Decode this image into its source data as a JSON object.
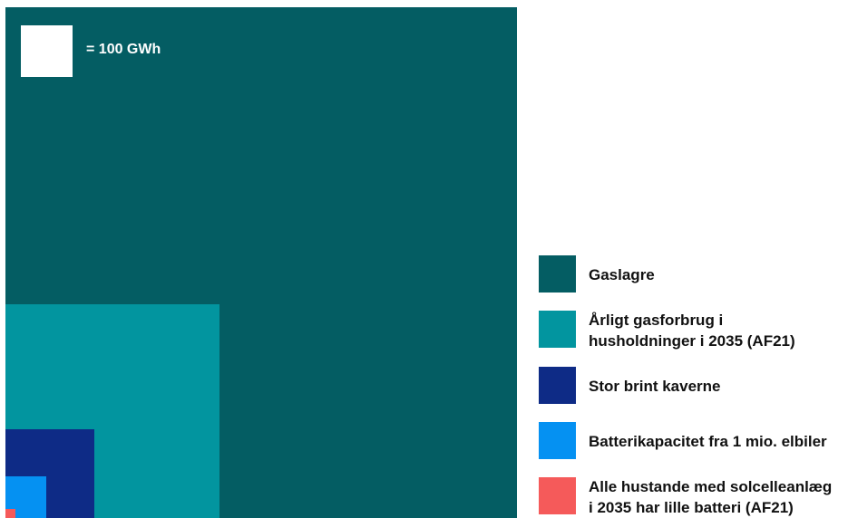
{
  "chart_data": {
    "type": "area",
    "title": "",
    "unit_note": "= 100 GWh",
    "items": [
      {
        "name": "Gaslagre",
        "lines": [
          "Gaslagre"
        ],
        "value_gwh": 9600,
        "color": "#045d63"
      },
      {
        "name": "Årligt gasforbrug i husholdninger i 2035 (AF21)",
        "lines": [
          "Årligt gasforbrug i",
          "husholdninger i 2035 (AF21)"
        ],
        "value_gwh": 1700,
        "color": "#02959f"
      },
      {
        "name": "Stor brint kaverne",
        "lines": [
          "Stor brint kaverne"
        ],
        "value_gwh": 290,
        "color": "#0e2b86"
      },
      {
        "name": "Batterikapacitet fra 1 mio. elbiler",
        "lines": [
          "Batterikapacitet fra 1 mio. elbiler"
        ],
        "value_gwh": 62,
        "color": "#0591f2"
      },
      {
        "name": "Alle hustande med solcelleanlæg i 2035 har lille batteri (AF21)",
        "lines": [
          "Alle hustande med solcelleanlæg",
          "i 2035 har lille batteri (AF21)"
        ],
        "value_gwh": 3.5,
        "color": "#f55a5a"
      }
    ]
  }
}
